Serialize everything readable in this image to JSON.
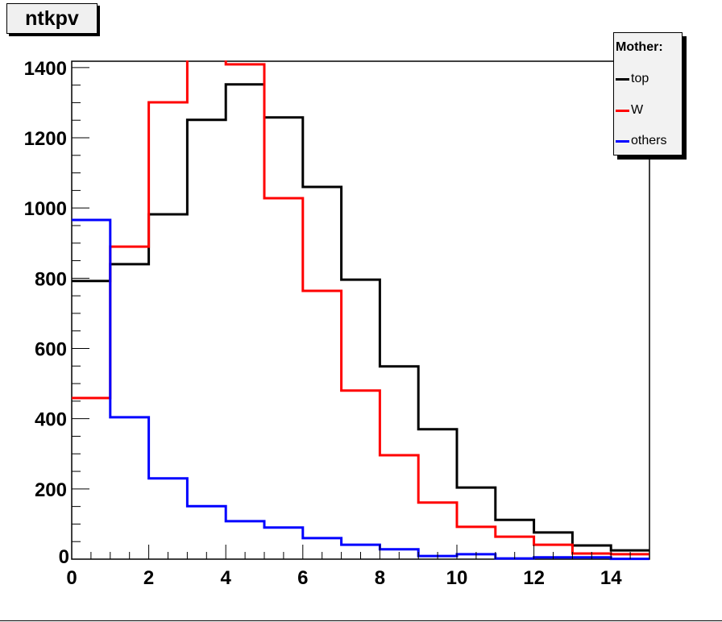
{
  "canvas_title": "ntkpv",
  "chart_data": {
    "type": "line",
    "style": "step-histogram",
    "title": "ntkpv",
    "xlabel": "",
    "ylabel": "",
    "xlim": [
      0,
      15
    ],
    "ylim": [
      0,
      1418
    ],
    "bin_edges": [
      0,
      1,
      2,
      3,
      4,
      5,
      6,
      7,
      8,
      9,
      10,
      11,
      12,
      13,
      14,
      15
    ],
    "x_ticks": [
      "0",
      "2",
      "4",
      "6",
      "8",
      "10",
      "12",
      "14"
    ],
    "x_tick_values": [
      0,
      2,
      4,
      6,
      8,
      10,
      12,
      14
    ],
    "y_ticks": [
      "0",
      "200",
      "400",
      "600",
      "800",
      "1000",
      "1200",
      "1400"
    ],
    "y_tick_values": [
      0,
      200,
      400,
      600,
      800,
      1000,
      1200,
      1400
    ],
    "grid": false,
    "legend": {
      "title": "Mother:",
      "placement": "top-right"
    },
    "series": [
      {
        "name": "top",
        "color": "#000000",
        "values": [
          792,
          840,
          982,
          1251,
          1352,
          1258,
          1060,
          796,
          549,
          370,
          204,
          112,
          76,
          39,
          25
        ]
      },
      {
        "name": "W",
        "color": "#ff0000",
        "values": [
          459,
          890,
          1301,
          1440,
          1409,
          1028,
          764,
          480,
          296,
          161,
          92,
          64,
          41,
          16,
          14
        ]
      },
      {
        "name": "others",
        "color": "#0000ff",
        "values": [
          966,
          404,
          230,
          151,
          108,
          90,
          60,
          41,
          28,
          9,
          14,
          2,
          5,
          5,
          1
        ]
      }
    ]
  }
}
